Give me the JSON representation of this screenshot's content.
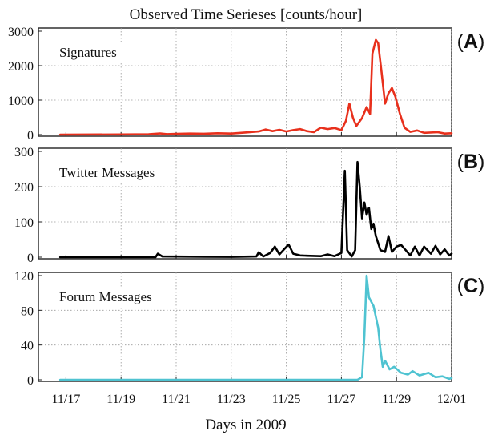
{
  "chart_data": {
    "type": "line",
    "title": "Observed Time Serieses [counts/hour]",
    "xlabel": "Days in 2009",
    "x_axis": {
      "unit": "date",
      "range": [
        "2009-11-16T00:00",
        "2009-12-01T00:00"
      ],
      "ticks": [
        "2009-11-17",
        "2009-11-19",
        "2009-11-21",
        "2009-11-23",
        "2009-11-25",
        "2009-11-27",
        "2009-11-29",
        "2009-12-01"
      ],
      "tick_labels": [
        "11/17",
        "11/19",
        "11/21",
        "11/23",
        "11/25",
        "11/27",
        "11/29",
        "12/01"
      ]
    },
    "grid": true,
    "panels": [
      {
        "letter": "A",
        "name": "Signatures",
        "color": "#e8301c",
        "ylim": [
          0,
          3000
        ],
        "yticks": [
          0,
          1000,
          2000,
          3000
        ],
        "ytick_labels": [
          "0",
          "1000",
          "2000",
          "3000"
        ],
        "points": [
          [
            "2009-11-16T19:00",
            0
          ],
          [
            "2009-11-19T00:00",
            5
          ],
          [
            "2009-11-20T00:00",
            10
          ],
          [
            "2009-11-20T10:00",
            35
          ],
          [
            "2009-11-20T16:00",
            15
          ],
          [
            "2009-11-21T00:00",
            20
          ],
          [
            "2009-11-21T12:00",
            30
          ],
          [
            "2009-11-22T00:00",
            25
          ],
          [
            "2009-11-22T12:00",
            40
          ],
          [
            "2009-11-23T00:00",
            30
          ],
          [
            "2009-11-23T12:00",
            60
          ],
          [
            "2009-11-24T00:00",
            90
          ],
          [
            "2009-11-24T06:00",
            150
          ],
          [
            "2009-11-24T12:00",
            100
          ],
          [
            "2009-11-24T18:00",
            140
          ],
          [
            "2009-11-25T00:00",
            90
          ],
          [
            "2009-11-25T06:00",
            130
          ],
          [
            "2009-11-25T12:00",
            160
          ],
          [
            "2009-11-25T18:00",
            100
          ],
          [
            "2009-11-26T00:00",
            70
          ],
          [
            "2009-11-26T06:00",
            200
          ],
          [
            "2009-11-26T12:00",
            160
          ],
          [
            "2009-11-26T18:00",
            190
          ],
          [
            "2009-11-27T00:00",
            130
          ],
          [
            "2009-11-27T04:00",
            400
          ],
          [
            "2009-11-27T07:00",
            900
          ],
          [
            "2009-11-27T10:00",
            500
          ],
          [
            "2009-11-27T13:00",
            250
          ],
          [
            "2009-11-27T18:00",
            480
          ],
          [
            "2009-11-27T22:00",
            800
          ],
          [
            "2009-11-28T01:00",
            600
          ],
          [
            "2009-11-28T03:00",
            2350
          ],
          [
            "2009-11-28T06:00",
            2750
          ],
          [
            "2009-11-28T08:00",
            2650
          ],
          [
            "2009-11-28T11:00",
            1800
          ],
          [
            "2009-11-28T14:00",
            900
          ],
          [
            "2009-11-28T17:00",
            1200
          ],
          [
            "2009-11-28T20:00",
            1350
          ],
          [
            "2009-11-28T23:00",
            1100
          ],
          [
            "2009-11-29T03:00",
            600
          ],
          [
            "2009-11-29T07:00",
            200
          ],
          [
            "2009-11-29T12:00",
            80
          ],
          [
            "2009-11-29T18:00",
            120
          ],
          [
            "2009-11-30T00:00",
            50
          ],
          [
            "2009-11-30T12:00",
            70
          ],
          [
            "2009-11-30T18:00",
            30
          ],
          [
            "2009-12-01T00:00",
            40
          ]
        ]
      },
      {
        "letter": "B",
        "name": "Twitter Messages",
        "color": "#000000",
        "ylim": [
          0,
          300
        ],
        "yticks": [
          0,
          100,
          200,
          300
        ],
        "ytick_labels": [
          "0",
          "100",
          "200",
          "300"
        ],
        "points": [
          [
            "2009-11-16T19:00",
            0
          ],
          [
            "2009-11-20T06:00",
            0
          ],
          [
            "2009-11-20T08:00",
            10
          ],
          [
            "2009-11-20T12:00",
            2
          ],
          [
            "2009-11-23T00:00",
            1
          ],
          [
            "2009-11-23T22:00",
            2
          ],
          [
            "2009-11-24T00:00",
            14
          ],
          [
            "2009-11-24T04:00",
            2
          ],
          [
            "2009-11-24T10:00",
            12
          ],
          [
            "2009-11-24T14:00",
            30
          ],
          [
            "2009-11-24T18:00",
            8
          ],
          [
            "2009-11-24T22:00",
            22
          ],
          [
            "2009-11-25T02:00",
            36
          ],
          [
            "2009-11-25T06:00",
            10
          ],
          [
            "2009-11-25T12:00",
            5
          ],
          [
            "2009-11-25T18:00",
            4
          ],
          [
            "2009-11-26T06:00",
            3
          ],
          [
            "2009-11-26T12:00",
            8
          ],
          [
            "2009-11-26T18:00",
            3
          ],
          [
            "2009-11-27T00:00",
            12
          ],
          [
            "2009-11-27T03:00",
            245
          ],
          [
            "2009-11-27T05:00",
            20
          ],
          [
            "2009-11-27T09:00",
            2
          ],
          [
            "2009-11-27T12:00",
            20
          ],
          [
            "2009-11-27T14:00",
            270
          ],
          [
            "2009-11-27T16:00",
            200
          ],
          [
            "2009-11-27T18:00",
            110
          ],
          [
            "2009-11-27T20:00",
            155
          ],
          [
            "2009-11-27T22:00",
            120
          ],
          [
            "2009-11-28T00:00",
            140
          ],
          [
            "2009-11-28T02:00",
            80
          ],
          [
            "2009-11-28T04:00",
            95
          ],
          [
            "2009-11-28T06:00",
            60
          ],
          [
            "2009-11-28T08:00",
            40
          ],
          [
            "2009-11-28T10:00",
            20
          ],
          [
            "2009-11-28T14:00",
            15
          ],
          [
            "2009-11-28T17:00",
            60
          ],
          [
            "2009-11-28T20:00",
            15
          ],
          [
            "2009-11-29T00:00",
            30
          ],
          [
            "2009-11-29T04:00",
            35
          ],
          [
            "2009-11-29T08:00",
            20
          ],
          [
            "2009-11-29T12:00",
            5
          ],
          [
            "2009-11-29T16:00",
            30
          ],
          [
            "2009-11-29T20:00",
            5
          ],
          [
            "2009-11-30T00:00",
            30
          ],
          [
            "2009-11-30T06:00",
            10
          ],
          [
            "2009-11-30T10:00",
            32
          ],
          [
            "2009-11-30T14:00",
            8
          ],
          [
            "2009-11-30T18:00",
            22
          ],
          [
            "2009-11-30T22:00",
            5
          ],
          [
            "2009-12-01T00:00",
            10
          ]
        ]
      },
      {
        "letter": "C",
        "name": "Forum Messages",
        "color": "#4fc3d1",
        "ylim": [
          0,
          120
        ],
        "yticks": [
          0,
          40,
          80,
          120
        ],
        "ytick_labels": [
          "0",
          "40",
          "80",
          "120"
        ],
        "points": [
          [
            "2009-11-16T19:00",
            0
          ],
          [
            "2009-11-27T14:00",
            0
          ],
          [
            "2009-11-27T18:00",
            3
          ],
          [
            "2009-11-27T20:00",
            50
          ],
          [
            "2009-11-27T22:00",
            120
          ],
          [
            "2009-11-28T00:00",
            95
          ],
          [
            "2009-11-28T04:00",
            85
          ],
          [
            "2009-11-28T08:00",
            60
          ],
          [
            "2009-11-28T10:00",
            35
          ],
          [
            "2009-11-28T12:00",
            15
          ],
          [
            "2009-11-28T14:00",
            22
          ],
          [
            "2009-11-28T18:00",
            12
          ],
          [
            "2009-11-28T22:00",
            15
          ],
          [
            "2009-11-29T04:00",
            8
          ],
          [
            "2009-11-29T10:00",
            6
          ],
          [
            "2009-11-29T14:00",
            10
          ],
          [
            "2009-11-29T20:00",
            5
          ],
          [
            "2009-11-30T04:00",
            8
          ],
          [
            "2009-11-30T10:00",
            3
          ],
          [
            "2009-11-30T16:00",
            4
          ],
          [
            "2009-11-30T22:00",
            1
          ],
          [
            "2009-12-01T00:00",
            2
          ]
        ]
      }
    ]
  }
}
